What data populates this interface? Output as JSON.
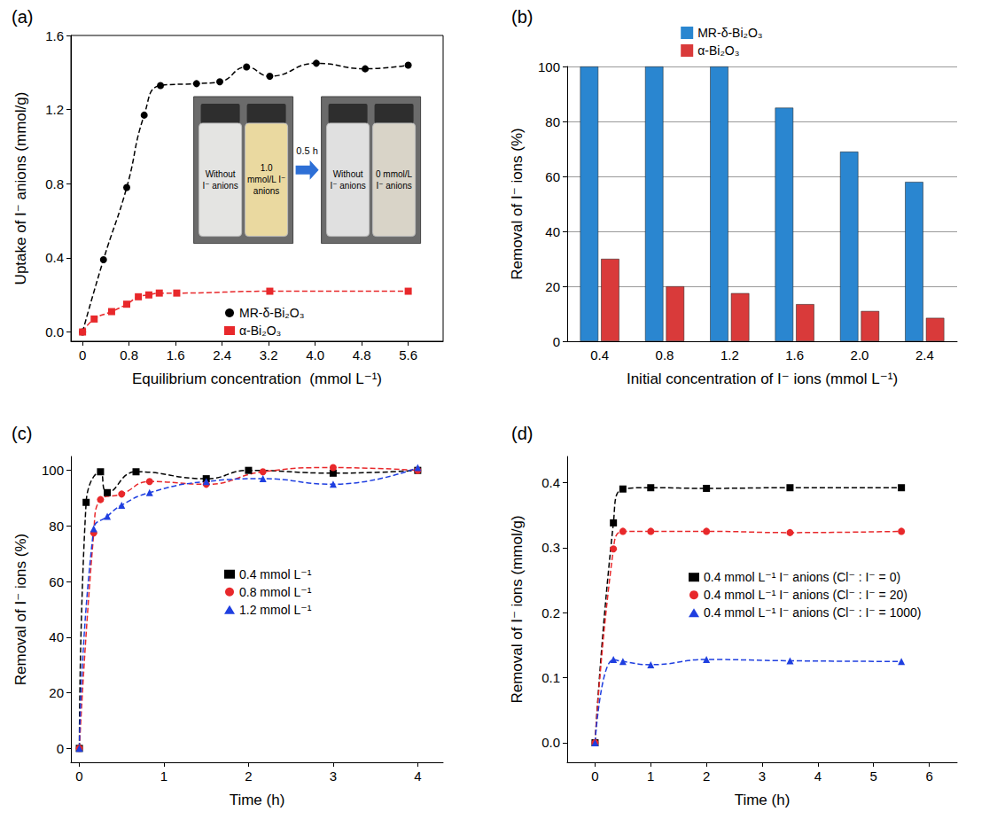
{
  "chart_data": [
    {
      "panel": "(a)",
      "type": "line",
      "xlabel": "Equilibrium concentration  (mmol L⁻¹)",
      "ylabel": "Uptake of I⁻ anions (mmol/g)",
      "xlim": [
        -0.2,
        6.2
      ],
      "xticks": [
        0,
        0.8,
        1.6,
        2.4,
        3.2,
        {
          "value": 4,
          "label": "4.0"
        },
        4.8,
        5.6
      ],
      "ylim": [
        -0.05,
        1.6
      ],
      "yticks": [
        {
          "value": 0,
          "label": "0.0"
        },
        0.4,
        0.8,
        1.2,
        1.6
      ],
      "grid": false,
      "legend": "bottom",
      "series": [
        {
          "name": "MR-δ-Bi₂O₃",
          "color": "#000000",
          "marker": "circle",
          "line_style": "dashed",
          "x": [
            0,
            0.36,
            0.76,
            1.06,
            1.34,
            1.96,
            2.36,
            2.82,
            3.22,
            4.02,
            4.86,
            5.6
          ],
          "values": [
            0,
            0.39,
            0.78,
            1.17,
            1.33,
            1.34,
            1.35,
            1.43,
            1.38,
            1.45,
            1.42,
            1.44
          ]
        },
        {
          "name": "α-Bi₂O₃",
          "color": "#e8282b",
          "marker": "square",
          "line_style": "dashed",
          "x": [
            0,
            0.2,
            0.5,
            0.76,
            0.96,
            1.14,
            1.32,
            1.62,
            3.22,
            5.6
          ],
          "values": [
            0,
            0.07,
            0.11,
            0.15,
            0.19,
            0.2,
            0.21,
            0.21,
            0.22,
            0.22
          ]
        }
      ],
      "inset": {
        "before": [
          "Without I⁻ anions",
          "1.0 mmol/L I⁻ anions"
        ],
        "arrow": "0.5 h",
        "after": [
          "Without I⁻ anions",
          "0 mmol/L I⁻ anions"
        ]
      }
    },
    {
      "panel": "(b)",
      "type": "bar",
      "xlabel": "Initial concentration of I⁻ ions (mmol L⁻¹)",
      "ylabel": "Removal of I⁻ ions (%)",
      "categories": [
        "0.4",
        "0.8",
        "1.2",
        "1.6",
        "2.0",
        "2.4"
      ],
      "ylim": [
        0,
        100
      ],
      "yticks": [
        0,
        20,
        40,
        60,
        80,
        100
      ],
      "grid": true,
      "legend": "top",
      "series": [
        {
          "name": "MR-δ-Bi₂O₃",
          "color": "#2a86d0",
          "values": [
            100,
            100,
            100,
            85,
            69,
            58
          ]
        },
        {
          "name": "α-Bi₂O₃",
          "color": "#d93a3a",
          "values": [
            30,
            20,
            17.5,
            13.5,
            11,
            8.5
          ]
        }
      ]
    },
    {
      "panel": "(c)",
      "type": "line",
      "xlabel": "Time (h)",
      "ylabel": "Removal of I⁻ ions (%)",
      "xlim": [
        -0.1,
        4.3
      ],
      "xticks": [
        0,
        1,
        2,
        3,
        4
      ],
      "ylim": [
        -5,
        105
      ],
      "yticks": [
        0,
        20,
        40,
        60,
        80,
        100
      ],
      "grid": false,
      "legend": "center",
      "series": [
        {
          "name": "0.4 mmol L⁻¹",
          "color": "#000000",
          "marker": "square",
          "line_style": "dashed",
          "x": [
            0,
            0.08,
            0.25,
            0.33,
            0.67,
            1.5,
            2.0,
            3.0,
            4.0
          ],
          "values": [
            0,
            88.5,
            99.5,
            92,
            99.5,
            97,
            100,
            99,
            100
          ]
        },
        {
          "name": "0.8 mmol L⁻¹",
          "color": "#e8282b",
          "marker": "circle",
          "line_style": "dashed",
          "x": [
            0,
            0.17,
            0.25,
            0.5,
            0.83,
            1.5,
            2.17,
            3.0,
            4.0
          ],
          "values": [
            0,
            77.5,
            89.5,
            91.5,
            96,
            95,
            99.5,
            101,
            100
          ]
        },
        {
          "name": "1.2 mmol L⁻¹",
          "color": "#1f3fe0",
          "marker": "triangle",
          "line_style": "dashed",
          "x": [
            0,
            0.17,
            0.33,
            0.5,
            0.83,
            1.5,
            2.17,
            3.0,
            4.0
          ],
          "values": [
            0,
            79,
            83.5,
            87.5,
            92,
            96,
            97,
            95,
            101
          ]
        }
      ]
    },
    {
      "panel": "(d)",
      "type": "line",
      "xlabel": "Time (h)",
      "ylabel": "Removal of I⁻ ions (mmol/g)",
      "xlim": [
        -0.5,
        6.5
      ],
      "xticks": [
        0,
        1,
        2,
        3,
        4,
        5,
        6
      ],
      "ylim": [
        -0.03,
        0.44
      ],
      "yticks": [
        {
          "value": 0,
          "label": "0.0"
        },
        0.1,
        0.2,
        0.3,
        0.4
      ],
      "grid": false,
      "legend": "right",
      "series": [
        {
          "name": "0.4 mmol L⁻¹ I⁻ anions (Cl⁻ : I⁻ = 0)",
          "color": "#000000",
          "marker": "square",
          "line_style": "dashed",
          "x": [
            0,
            0.33,
            0.5,
            1,
            2,
            3.5,
            5.5
          ],
          "values": [
            0,
            0.338,
            0.39,
            0.392,
            0.391,
            0.392,
            0.392
          ]
        },
        {
          "name": "0.4 mmol L⁻¹ I⁻ anions (Cl⁻ : I⁻ = 20)",
          "color": "#e8282b",
          "marker": "circle",
          "line_style": "dashed",
          "x": [
            0,
            0.33,
            0.5,
            1,
            2,
            3.5,
            5.5
          ],
          "values": [
            0,
            0.298,
            0.325,
            0.325,
            0.325,
            0.323,
            0.325
          ]
        },
        {
          "name": "0.4 mmol L⁻¹ I⁻ anions (Cl⁻ : I⁻ = 1000)",
          "color": "#1f3fe0",
          "marker": "triangle",
          "line_style": "dashed",
          "x": [
            0,
            0.33,
            0.5,
            1,
            2,
            3.5,
            5.5
          ],
          "values": [
            0,
            0.128,
            0.125,
            0.12,
            0.128,
            0.126,
            0.125
          ]
        }
      ]
    }
  ]
}
